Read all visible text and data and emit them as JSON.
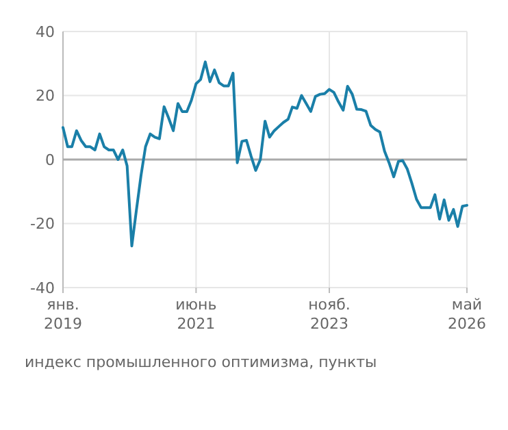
{
  "chart_data": {
    "type": "line",
    "x": [
      "2019-01",
      "2019-02",
      "2019-03",
      "2019-04",
      "2019-05",
      "2019-06",
      "2019-07",
      "2019-08",
      "2019-09",
      "2019-10",
      "2019-11",
      "2019-12",
      "2020-01",
      "2020-02",
      "2020-03",
      "2020-04",
      "2020-05",
      "2020-06",
      "2020-07",
      "2020-08",
      "2020-09",
      "2020-10",
      "2020-11",
      "2020-12",
      "2021-01",
      "2021-02",
      "2021-03",
      "2021-04",
      "2021-05",
      "2021-06",
      "2021-07",
      "2021-08",
      "2021-09",
      "2021-10",
      "2021-11",
      "2021-12",
      "2022-01",
      "2022-02",
      "2022-03",
      "2022-04",
      "2022-05",
      "2022-06",
      "2022-07",
      "2022-08",
      "2022-09",
      "2022-10",
      "2022-11",
      "2022-12",
      "2023-01",
      "2023-02",
      "2023-03",
      "2023-04",
      "2023-05",
      "2023-06",
      "2023-07",
      "2023-08",
      "2023-09",
      "2023-10",
      "2023-11",
      "2023-12",
      "2024-01",
      "2024-02",
      "2024-03",
      "2024-04",
      "2024-05",
      "2024-06",
      "2024-07",
      "2024-08",
      "2024-09",
      "2024-10",
      "2024-11",
      "2024-12",
      "2025-01",
      "2025-02",
      "2025-03",
      "2025-04",
      "2025-05",
      "2025-06",
      "2025-07",
      "2025-08",
      "2025-09",
      "2025-10",
      "2025-11",
      "2025-12",
      "2026-01",
      "2026-02",
      "2026-03",
      "2026-04",
      "2026-05"
    ],
    "series": [
      {
        "color": "#1a7fa8",
        "values": [
          10,
          4,
          4,
          9,
          6,
          4,
          4,
          3,
          8,
          4,
          3,
          3,
          0,
          3,
          -2,
          -27,
          -16,
          -5,
          4,
          8,
          7,
          6.5,
          16.5,
          13,
          9,
          17.5,
          15,
          15,
          18.5,
          23.7,
          25,
          30.5,
          24.3,
          28,
          24,
          23,
          23,
          27,
          -1,
          5.7,
          6,
          1,
          -3.4,
          0,
          12,
          7,
          9,
          10.3,
          11.6,
          12.6,
          16.4,
          16,
          20,
          17.5,
          15,
          19.7,
          20.4,
          20.6,
          21.9,
          21,
          18,
          15.4,
          22.9,
          20.4,
          15.7,
          15.6,
          15.1,
          10.7,
          9.4,
          8.6,
          2.6,
          -1,
          -5.4,
          -0.6,
          -0.3,
          -3,
          -7.4,
          -12.4,
          -15,
          -15,
          -15,
          -11,
          -18.6,
          -12.6,
          -19,
          -15.6,
          -20.9,
          -14.6,
          -14.3
        ]
      }
    ],
    "xlim": [
      "2019-01",
      "2026-05"
    ],
    "xticks": [
      {
        "value": "2019-01",
        "label": "янв. 2019"
      },
      {
        "value": "2021-06",
        "label": "июнь 2021"
      },
      {
        "value": "2023-11",
        "label": "нояб. 2023"
      },
      {
        "value": "2026-05",
        "label": "май 2026"
      }
    ],
    "ylim": [
      -40,
      40
    ],
    "yticks": [
      -40,
      -20,
      0,
      20,
      40
    ],
    "grid": true,
    "ref_lines": [
      {
        "axis": "y",
        "value": 0,
        "color": "#aaaaaa"
      }
    ],
    "annotations": [
      "индекс промышленного оптимизма, пункты"
    ]
  }
}
